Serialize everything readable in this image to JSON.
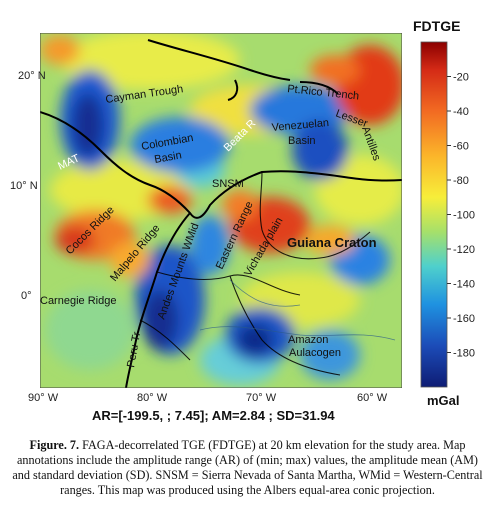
{
  "figure": {
    "colorbar": {
      "title": "FDTGE",
      "unit": "mGal",
      "ticks": [
        "-20",
        "-40",
        "-60",
        "-80",
        "-100",
        "-120",
        "-140",
        "-160",
        "-180"
      ]
    },
    "axes": {
      "lat_labels": [
        "20° N",
        "10° N",
        "0°"
      ],
      "lon_labels": [
        "90° W",
        "80° W",
        "70° W",
        "60° W"
      ]
    },
    "annotations": [
      "Cayman Trough",
      "Pt.Rico Trench",
      "Lesser",
      "Antilles",
      "Colombian",
      "Basin",
      "Beata R",
      "Venezuelan",
      "Basin",
      "MAT",
      "SNSM",
      "Cocos Ridge",
      "Malpelo Ridge",
      "Andes Mounts WMid",
      "Eastern Range",
      "Vichada plain",
      "Guiana Craton",
      "Carnegie Ridge",
      "Peru Tr",
      "Amazon",
      "Aulacogen"
    ],
    "stats_line": "AR=[-199.5, ; 7.45]; AM=2.84 ; SD=31.94",
    "caption": {
      "label": "Figure. 7.",
      "text": " FAGA-decorrelated TGE (FDTGE) at 20 km elevation for the study area. Map annotations include the amplitude range (AR) of (min; max) values, the amplitude mean (AM) and standard deviation (SD). SNSM = Sierra Nevada of Santa Martha, WMid = Western-Central ranges. This map was produced using the Albers equal-area conic projection."
    }
  },
  "chart_data": {
    "type": "heatmap",
    "title": "",
    "colorbar_title": "FDTGE",
    "colorbar_unit": "mGal",
    "colorbar_ticks": [
      -20,
      -40,
      -60,
      -80,
      -100,
      -120,
      -140,
      -160,
      -180
    ],
    "amplitude_range": [
      -199.5,
      7.45
    ],
    "amplitude_mean": 2.84,
    "standard_deviation": 31.94,
    "x_tick_labels": [
      "90° W",
      "80° W",
      "70° W",
      "60° W"
    ],
    "y_tick_labels": [
      "20° N",
      "10° N",
      "0°"
    ]
  }
}
